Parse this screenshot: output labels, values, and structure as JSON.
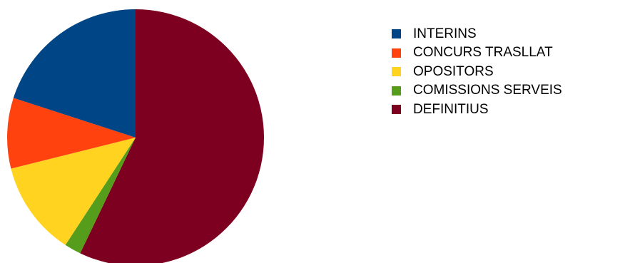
{
  "chart_data": {
    "type": "pie",
    "title": "",
    "start_angle_deg": -90,
    "direction": "clockwise",
    "legend_position": "right",
    "slices": [
      {
        "label": "DEFINITIUS",
        "value": 57.1,
        "color": "#7e0021"
      },
      {
        "label": "COMISSIONS SERVEIS",
        "value": 2.1,
        "color": "#579d1c"
      },
      {
        "label": "OPOSITORS",
        "value": 11.9,
        "color": "#ffd320"
      },
      {
        "label": "CONCURS TRASLLAT",
        "value": 8.9,
        "color": "#ff420e"
      },
      {
        "label": "INTERINS",
        "value": 20.0,
        "color": "#004586"
      }
    ],
    "legend_order": [
      "INTERINS",
      "CONCURS TRASLLAT",
      "OPOSITORS",
      "COMISSIONS SERVEIS",
      "DEFINITIUS"
    ]
  }
}
